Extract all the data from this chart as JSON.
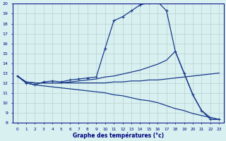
{
  "title": "Graphe des températures (°c)",
  "bg_color": "#d8f0f0",
  "grid_color": "#b8d0d0",
  "line_color": "#1a3a8a",
  "xlim": [
    -0.5,
    23.5
  ],
  "ylim": [
    8,
    20
  ],
  "xticks": [
    0,
    1,
    2,
    3,
    4,
    5,
    6,
    7,
    8,
    9,
    10,
    11,
    12,
    13,
    14,
    15,
    16,
    17,
    18,
    19,
    20,
    21,
    22,
    23
  ],
  "yticks": [
    8,
    9,
    10,
    11,
    12,
    13,
    14,
    15,
    16,
    17,
    18,
    19,
    20
  ],
  "t_main": [
    12.7,
    12.0,
    11.8,
    12.1,
    12.2,
    12.1,
    12.3,
    12.4,
    12.5,
    12.6,
    15.5,
    18.3,
    18.7,
    19.3,
    19.9,
    20.1,
    20.2,
    19.3,
    15.2,
    13.0,
    10.8,
    9.2,
    8.3,
    8.3
  ],
  "t_max": [
    12.7,
    12.1,
    12.0,
    12.0,
    12.0,
    12.0,
    12.1,
    12.2,
    12.3,
    12.4,
    12.6,
    12.7,
    12.9,
    13.1,
    13.3,
    13.6,
    13.9,
    14.3,
    15.2,
    13.0,
    10.8,
    9.2,
    8.5,
    8.3
  ],
  "t_mean": [
    12.7,
    12.1,
    12.0,
    12.0,
    12.0,
    12.0,
    12.0,
    12.0,
    12.0,
    12.0,
    12.0,
    12.1,
    12.1,
    12.2,
    12.2,
    12.3,
    12.3,
    12.4,
    12.5,
    12.6,
    12.7,
    12.8,
    12.9,
    13.0
  ],
  "t_min": [
    12.7,
    12.0,
    11.8,
    11.7,
    11.6,
    11.5,
    11.4,
    11.3,
    11.2,
    11.1,
    11.0,
    10.8,
    10.7,
    10.5,
    10.3,
    10.2,
    10.0,
    9.7,
    9.4,
    9.2,
    8.9,
    8.7,
    8.5,
    8.3
  ]
}
